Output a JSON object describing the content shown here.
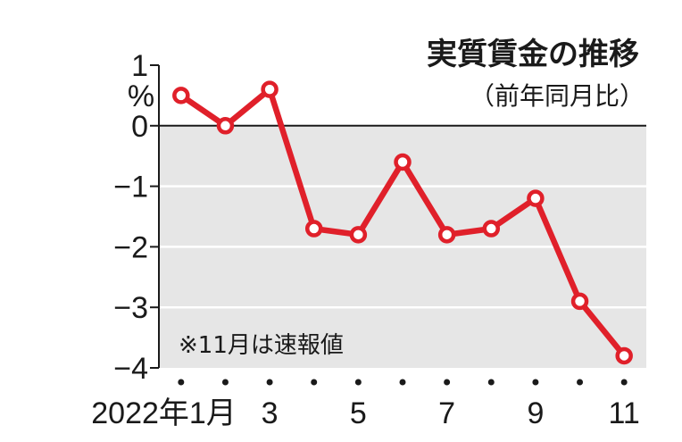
{
  "chart_data": {
    "type": "line",
    "title": "実質賃金の推移",
    "subtitle": "（前年同月比）",
    "ylabel": "%",
    "note": "※11月は速報値",
    "x": [
      1,
      2,
      3,
      4,
      5,
      6,
      7,
      8,
      9,
      10,
      11
    ],
    "x_tick_labels": [
      {
        "x": 1,
        "label": "2022年1月"
      },
      {
        "x": 3,
        "label": "3"
      },
      {
        "x": 5,
        "label": "5"
      },
      {
        "x": 7,
        "label": "7"
      },
      {
        "x": 9,
        "label": "9"
      },
      {
        "x": 11,
        "label": "11"
      }
    ],
    "series": [
      {
        "values": [
          0.5,
          0.0,
          0.6,
          -1.7,
          -1.8,
          -0.6,
          -1.8,
          -1.7,
          -1.2,
          -2.9,
          -3.8
        ]
      }
    ],
    "yticks": [
      1,
      0,
      -1,
      -2,
      -3,
      -4
    ],
    "ytick_labels": [
      "1",
      "0",
      "−1",
      "−2",
      "−3",
      "−4"
    ],
    "ylim": [
      -4,
      1
    ],
    "xlim": [
      0.5,
      11.5
    ],
    "negative_region_shaded": true,
    "grid": true,
    "colors": {
      "line": "#e0202a",
      "shade": "#e6e6e6",
      "grid": "#ffffff",
      "axis": "#1a1a1a",
      "marker_fill": "#ffffff"
    }
  }
}
